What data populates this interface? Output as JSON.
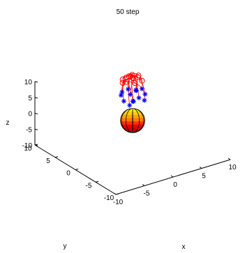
{
  "chart_data": {
    "type": "scatter",
    "title": "50 step",
    "xlabel": "x",
    "ylabel": "y",
    "zlabel": "z",
    "xlim": [
      -10,
      10
    ],
    "ylim": [
      -10,
      10
    ],
    "zlim": [
      -10,
      10
    ],
    "x_ticks": [
      "-10",
      "-5",
      "0",
      "5",
      "10"
    ],
    "y_ticks": [
      "-10",
      "-5",
      "0",
      "5",
      "10"
    ],
    "z_ticks": [
      "-10",
      "-5",
      "0",
      "5",
      "10"
    ],
    "grid": false,
    "colors": {
      "trajectory": "#ff0000",
      "start_marker": "#ff0000",
      "end_marker": "#0000ff",
      "axis": "#000000"
    },
    "sphere": {
      "center": [
        0,
        0,
        0
      ],
      "radius": 1.2
    },
    "series": [
      {
        "marker": "o",
        "points": [
          [
            -1.4,
            -0.4,
            13.3
          ],
          [
            -0.8,
            0.5,
            13.6
          ],
          [
            0.0,
            0.0,
            13.4
          ],
          [
            0.7,
            -0.3,
            13.5
          ],
          [
            1.3,
            0.4,
            13.2
          ],
          [
            -1.1,
            0.9,
            12.9
          ],
          [
            0.4,
            1.0,
            13.0
          ],
          [
            -0.3,
            -1.0,
            12.8
          ],
          [
            1.0,
            -0.9,
            12.7
          ],
          [
            -1.6,
            0.2,
            12.6
          ],
          [
            0.2,
            0.4,
            14.0
          ],
          [
            -0.5,
            0.2,
            14.1
          ]
        ]
      },
      {
        "marker": "*",
        "points": [
          [
            -2.1,
            -0.8,
            7.9
          ],
          [
            -1.6,
            0.6,
            8.4
          ],
          [
            -0.9,
            -1.5,
            7.7
          ],
          [
            -0.2,
            0.3,
            8.1
          ],
          [
            0.6,
            -0.7,
            7.4
          ],
          [
            1.3,
            0.9,
            8.0
          ],
          [
            1.9,
            -0.4,
            7.6
          ],
          [
            -1.0,
            1.2,
            8.6
          ],
          [
            0.2,
            1.4,
            8.7
          ],
          [
            1.0,
            -1.5,
            7.0
          ],
          [
            -1.8,
            -1.8,
            7.2
          ],
          [
            2.2,
            0.8,
            8.2
          ],
          [
            -0.4,
            -0.6,
            6.8
          ],
          [
            0.7,
            0.2,
            9.1
          ]
        ]
      }
    ]
  }
}
